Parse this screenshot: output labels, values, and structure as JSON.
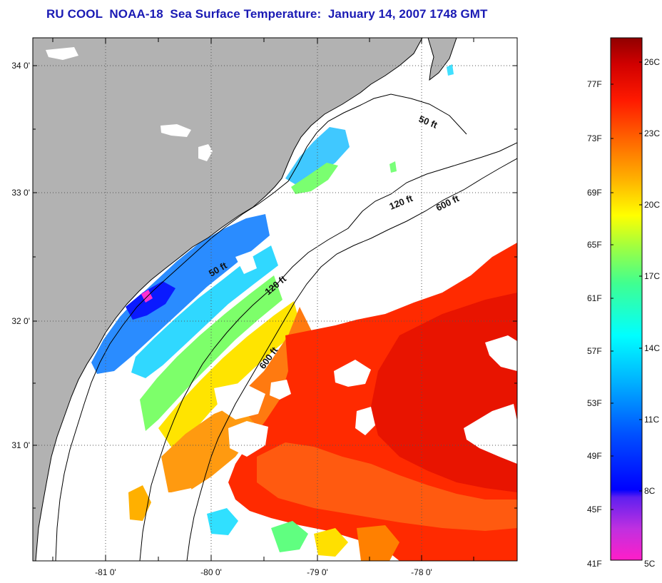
{
  "title": "RU COOL  NOAA-18  Sea Surface Temperature:  January 14, 2007 1748 GMT",
  "map": {
    "lat_labels": [
      "34 0'",
      "33 0'",
      "32 0'",
      "31 0'"
    ],
    "lon_labels": [
      "-81 0'",
      "-80 0'",
      "-79 0'",
      "-78 0'"
    ],
    "contour_labels": [
      "50 ft",
      "50 ft",
      "120 ft",
      "120 ft",
      "600 ft",
      "600 ft"
    ],
    "colors": {
      "land": "#b2b2b2",
      "cloud": "#ffffff",
      "graticule": "#555555"
    }
  },
  "colorbar": {
    "fahrenheit_labels": [
      "77F",
      "73F",
      "69F",
      "65F",
      "61F",
      "57F",
      "53F",
      "49F",
      "45F",
      "41F"
    ],
    "celsius_labels": [
      "26C",
      "23C",
      "20C",
      "17C",
      "14C",
      "11C",
      "8C",
      "5C"
    ],
    "range_c": [
      5,
      27
    ],
    "colors": [
      "#ff1ec8",
      "#a020f0",
      "#0000ff",
      "#00a8ff",
      "#00ffff",
      "#40ff80",
      "#ffff00",
      "#ff9900",
      "#ff2200",
      "#a00000"
    ]
  }
}
